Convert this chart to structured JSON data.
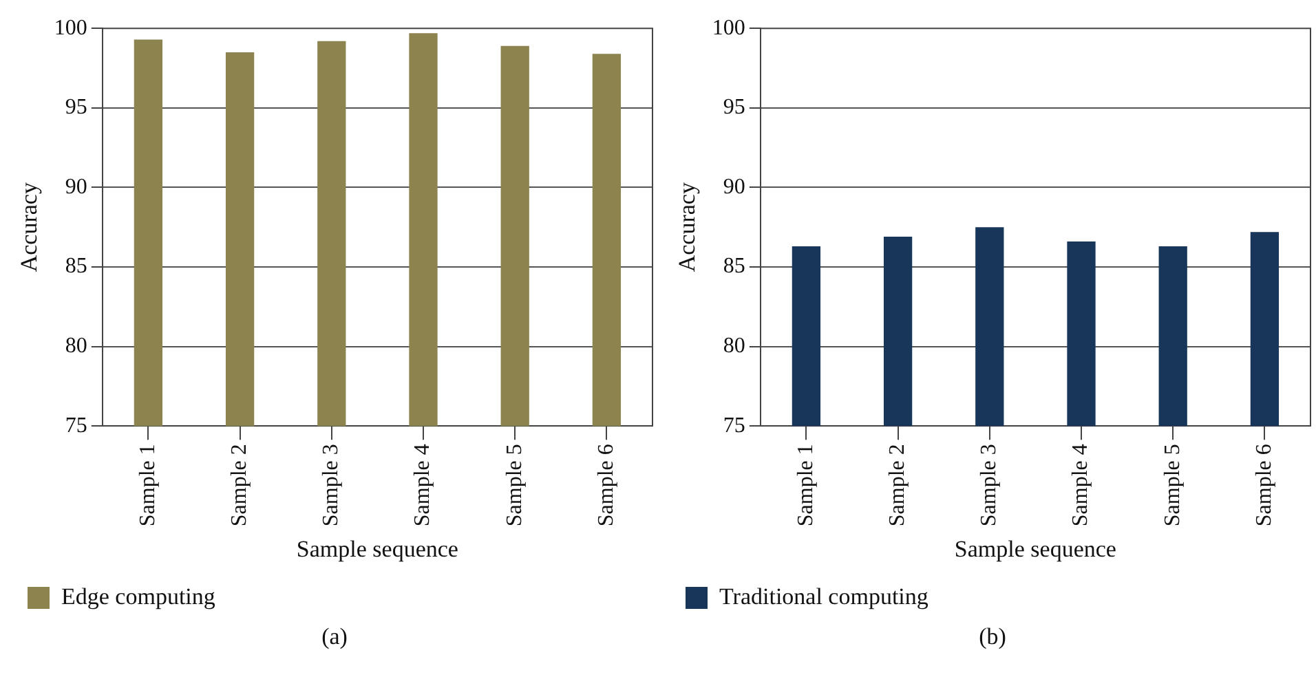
{
  "chart_data": [
    {
      "type": "bar",
      "categories": [
        "Sample 1",
        "Sample 2",
        "Sample 3",
        "Sample 4",
        "Sample 5",
        "Sample 6"
      ],
      "series": [
        {
          "name": "Edge computing",
          "color": "#8c834f",
          "values": [
            99.3,
            98.5,
            99.2,
            99.7,
            98.9,
            98.4
          ]
        }
      ],
      "xlabel": "Sample sequence",
      "ylabel": "Accuracy",
      "ylim": [
        75,
        100
      ],
      "yticks": [
        75,
        80,
        85,
        90,
        95,
        100
      ],
      "grid": "y",
      "legend": "bottom left",
      "annotations": [
        "(a)"
      ]
    },
    {
      "type": "bar",
      "categories": [
        "Sample 1",
        "Sample 2",
        "Sample 3",
        "Sample 4",
        "Sample 5",
        "Sample 6"
      ],
      "series": [
        {
          "name": "Traditional computing",
          "color": "#18365a",
          "values": [
            86.3,
            86.9,
            87.5,
            86.6,
            86.3,
            87.2
          ]
        }
      ],
      "xlabel": "Sample sequence",
      "ylabel": "Accuracy",
      "ylim": [
        75,
        100
      ],
      "yticks": [
        75,
        80,
        85,
        90,
        95,
        100
      ],
      "grid": "y",
      "legend": "bottom left",
      "annotations": [
        "(b)"
      ]
    }
  ]
}
